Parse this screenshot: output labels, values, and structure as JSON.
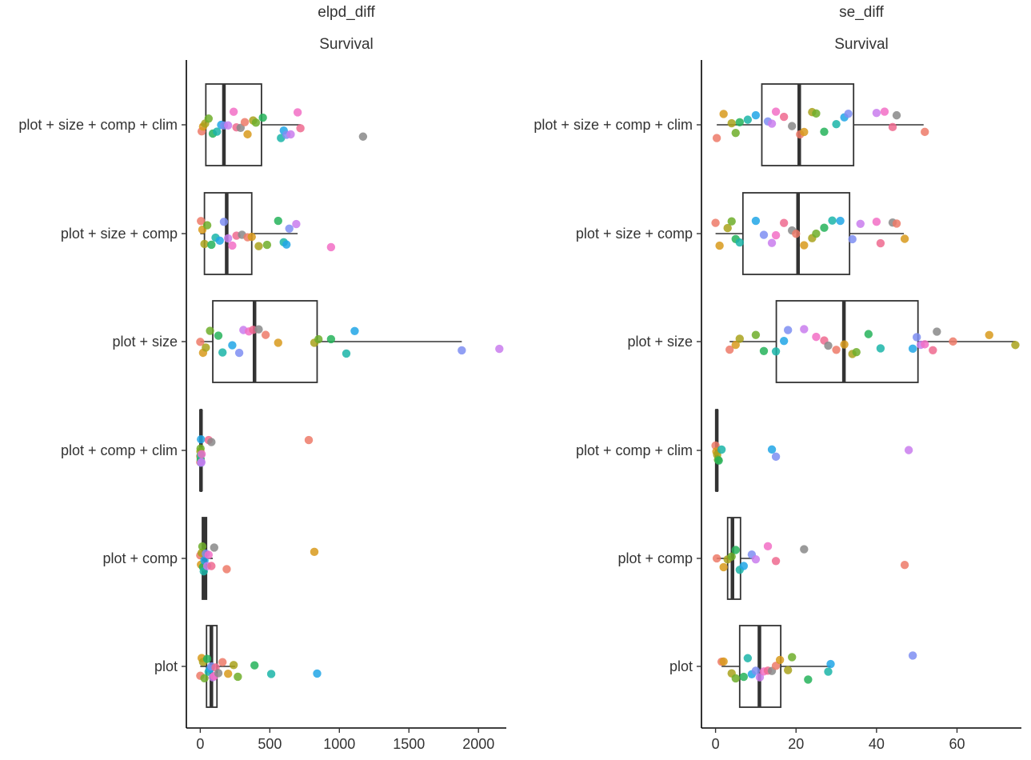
{
  "chart_data": [
    {
      "type": "boxplot-jitter",
      "orientation": "horizontal",
      "title": "elpd_diff",
      "subtitle": "Survival",
      "xlabel": "",
      "ylabel": "",
      "xlim": [
        -100,
        2200
      ],
      "x_ticks": [
        0,
        500,
        1000,
        1500,
        2000
      ],
      "x_tick_labels": [
        "0",
        "500",
        "1000",
        "1500",
        "2000"
      ],
      "categories": [
        "plot + size + comp + clim",
        "plot + size + comp",
        "plot + size",
        "plot + comp + clim",
        "plot + comp",
        "plot"
      ],
      "boxes": [
        {
          "category": "plot + size + comp + clim",
          "whisker_low": 0,
          "q1": 40,
          "median": 170,
          "q3": 440,
          "whisker_high": 720
        },
        {
          "category": "plot + size + comp",
          "whisker_low": 0,
          "q1": 30,
          "median": 190,
          "q3": 370,
          "whisker_high": 700
        },
        {
          "category": "plot + size",
          "whisker_low": 0,
          "q1": 90,
          "median": 390,
          "q3": 840,
          "whisker_high": 1880
        },
        {
          "category": "plot + comp + clim",
          "whisker_low": 0,
          "q1": 0,
          "median": 5,
          "q3": 10,
          "whisker_high": 20
        },
        {
          "category": "plot + comp",
          "whisker_low": 0,
          "q1": 15,
          "median": 30,
          "q3": 45,
          "whisker_high": 90
        },
        {
          "category": "plot",
          "whisker_low": 0,
          "q1": 45,
          "median": 80,
          "q3": 120,
          "whisker_high": 250
        }
      ],
      "points": [
        {
          "category": "plot + size + comp + clim",
          "values": [
            10,
            20,
            35,
            60,
            90,
            120,
            150,
            170,
            200,
            240,
            260,
            290,
            320,
            340,
            380,
            400,
            450,
            580,
            600,
            620,
            650,
            700,
            720,
            1170
          ],
          "colors": [
            "#ed7a69",
            "#d89a1c",
            "#a9a21c",
            "#6fae2a",
            "#26b35a",
            "#1bb5a8",
            "#21a6e6",
            "#7e8ef2",
            "#c97ded",
            "#f26ec5",
            "#ee6a8f",
            "#888888"
          ]
        },
        {
          "category": "plot + size + comp",
          "values": [
            5,
            15,
            30,
            50,
            80,
            110,
            140,
            170,
            200,
            230,
            260,
            300,
            340,
            370,
            420,
            480,
            560,
            600,
            620,
            640,
            690,
            940
          ],
          "colors": [
            "#ed7a69",
            "#d89a1c",
            "#a9a21c",
            "#6fae2a",
            "#26b35a",
            "#1bb5a8",
            "#21a6e6",
            "#7e8ef2",
            "#c97ded",
            "#f26ec5",
            "#ee6a8f",
            "#888888"
          ]
        },
        {
          "category": "plot + size",
          "values": [
            0,
            20,
            40,
            70,
            130,
            160,
            230,
            280,
            310,
            350,
            380,
            420,
            470,
            560,
            820,
            850,
            940,
            1050,
            1110,
            1880,
            2150
          ],
          "colors": [
            "#ed7a69",
            "#d89a1c",
            "#a9a21c",
            "#6fae2a",
            "#26b35a",
            "#1bb5a8",
            "#21a6e6",
            "#7e8ef2",
            "#c97ded",
            "#f26ec5",
            "#ee6a8f",
            "#888888"
          ]
        },
        {
          "category": "plot + comp + clim",
          "values": [
            0,
            0,
            1,
            2,
            3,
            4,
            5,
            6,
            8,
            10,
            60,
            80,
            780
          ],
          "colors": [
            "#ed7a69",
            "#d89a1c",
            "#a9a21c",
            "#6fae2a",
            "#26b35a",
            "#1bb5a8",
            "#21a6e6",
            "#7e8ef2",
            "#c97ded",
            "#f26ec5",
            "#ee6a8f",
            "#888888"
          ]
        },
        {
          "category": "plot + comp",
          "values": [
            0,
            5,
            10,
            15,
            20,
            25,
            30,
            40,
            50,
            60,
            80,
            100,
            190,
            820
          ],
          "colors": [
            "#ed7a69",
            "#d89a1c",
            "#a9a21c",
            "#6fae2a",
            "#26b35a",
            "#1bb5a8",
            "#21a6e6",
            "#7e8ef2",
            "#c97ded",
            "#f26ec5",
            "#ee6a8f",
            "#888888"
          ]
        },
        {
          "category": "plot",
          "values": [
            0,
            10,
            20,
            30,
            50,
            60,
            70,
            80,
            90,
            100,
            110,
            130,
            160,
            200,
            240,
            270,
            390,
            510,
            840
          ],
          "colors": [
            "#ed7a69",
            "#d89a1c",
            "#a9a21c",
            "#6fae2a",
            "#26b35a",
            "#1bb5a8",
            "#21a6e6",
            "#7e8ef2",
            "#c97ded",
            "#f26ec5",
            "#ee6a8f",
            "#888888"
          ]
        }
      ]
    },
    {
      "type": "boxplot-jitter",
      "orientation": "horizontal",
      "title": "se_diff",
      "subtitle": "Survival",
      "xlabel": "",
      "ylabel": "",
      "xlim": [
        -3.5,
        76
      ],
      "x_ticks": [
        0,
        20,
        40,
        60
      ],
      "x_tick_labels": [
        "0",
        "20",
        "40",
        "60"
      ],
      "categories": [
        "plot + size + comp + clim",
        "plot + size + comp",
        "plot + size",
        "plot + comp + clim",
        "plot + comp",
        "plot"
      ],
      "boxes": [
        {
          "category": "plot + size + comp + clim",
          "whisker_low": 0.3,
          "q1": 11.5,
          "median": 20.8,
          "q3": 34.3,
          "whisker_high": 51.7
        },
        {
          "category": "plot + size + comp",
          "whisker_low": 0,
          "q1": 6.8,
          "median": 20.5,
          "q3": 33.3,
          "whisker_high": 46.8
        },
        {
          "category": "plot + size",
          "whisker_low": 3.5,
          "q1": 15.1,
          "median": 31.9,
          "q3": 50.3,
          "whisker_high": 74.5
        },
        {
          "category": "plot + comp + clim",
          "whisker_low": 0,
          "q1": 0.1,
          "median": 0.3,
          "q3": 0.5,
          "whisker_high": 0.8
        },
        {
          "category": "plot + comp",
          "whisker_low": 0.3,
          "q1": 3,
          "median": 4.2,
          "q3": 6.2,
          "whisker_high": 9.5
        },
        {
          "category": "plot",
          "whisker_low": 1.5,
          "q1": 6,
          "median": 10.9,
          "q3": 16.2,
          "whisker_high": 28.6
        }
      ],
      "points": [
        {
          "category": "plot + size + comp + clim",
          "values": [
            0.3,
            2,
            4,
            5,
            6,
            8,
            10,
            13,
            14,
            15,
            17,
            19,
            21,
            22,
            24,
            25,
            27,
            30,
            32,
            33,
            40,
            42,
            44,
            45,
            52
          ],
          "colors": [
            "#ed7a69",
            "#d89a1c",
            "#a9a21c",
            "#6fae2a",
            "#26b35a",
            "#1bb5a8",
            "#21a6e6",
            "#7e8ef2",
            "#c97ded",
            "#f26ec5",
            "#ee6a8f",
            "#888888"
          ]
        },
        {
          "category": "plot + size + comp",
          "values": [
            0,
            1,
            3,
            4,
            5,
            6,
            10,
            12,
            14,
            15,
            17,
            19,
            20,
            22,
            24,
            25,
            27,
            29,
            31,
            34,
            36,
            40,
            41,
            44,
            45,
            47
          ],
          "colors": [
            "#ed7a69",
            "#d89a1c",
            "#a9a21c",
            "#6fae2a",
            "#26b35a",
            "#1bb5a8",
            "#21a6e6",
            "#7e8ef2",
            "#c97ded",
            "#f26ec5",
            "#ee6a8f",
            "#888888"
          ]
        },
        {
          "category": "plot + size",
          "values": [
            3.5,
            5,
            6,
            10,
            12,
            15,
            17,
            18,
            22,
            25,
            27,
            28,
            30,
            32,
            34,
            35,
            38,
            41,
            49,
            50,
            51,
            52,
            54,
            55,
            59,
            68,
            74.5
          ],
          "colors": [
            "#ed7a69",
            "#d89a1c",
            "#a9a21c",
            "#6fae2a",
            "#26b35a",
            "#1bb5a8",
            "#21a6e6",
            "#7e8ef2",
            "#c97ded",
            "#f26ec5",
            "#ee6a8f",
            "#888888"
          ]
        },
        {
          "category": "plot + comp + clim",
          "values": [
            0,
            0.2,
            0.4,
            0.6,
            0.8,
            1.5,
            14,
            15,
            48
          ],
          "colors": [
            "#ed7a69",
            "#d89a1c",
            "#a9a21c",
            "#6fae2a",
            "#26b35a",
            "#1bb5a8",
            "#21a6e6",
            "#7e8ef2",
            "#c97ded",
            "#f26ec5",
            "#ee6a8f",
            "#888888"
          ]
        },
        {
          "category": "plot + comp",
          "values": [
            0.3,
            2,
            3,
            4,
            5,
            6,
            7,
            9,
            10,
            13,
            15,
            22,
            47
          ],
          "colors": [
            "#ed7a69",
            "#d89a1c",
            "#a9a21c",
            "#6fae2a",
            "#26b35a",
            "#1bb5a8",
            "#21a6e6",
            "#7e8ef2",
            "#c97ded",
            "#f26ec5",
            "#ee6a8f",
            "#888888"
          ]
        },
        {
          "category": "plot",
          "values": [
            1.5,
            2,
            4,
            5,
            7,
            8,
            9,
            10,
            11,
            12,
            13,
            14,
            15,
            16,
            18,
            19,
            23,
            28,
            28.6,
            49
          ],
          "colors": [
            "#ed7a69",
            "#d89a1c",
            "#a9a21c",
            "#6fae2a",
            "#26b35a",
            "#1bb5a8",
            "#21a6e6",
            "#7e8ef2",
            "#c97ded",
            "#f26ec5",
            "#ee6a8f",
            "#888888"
          ]
        }
      ]
    }
  ]
}
